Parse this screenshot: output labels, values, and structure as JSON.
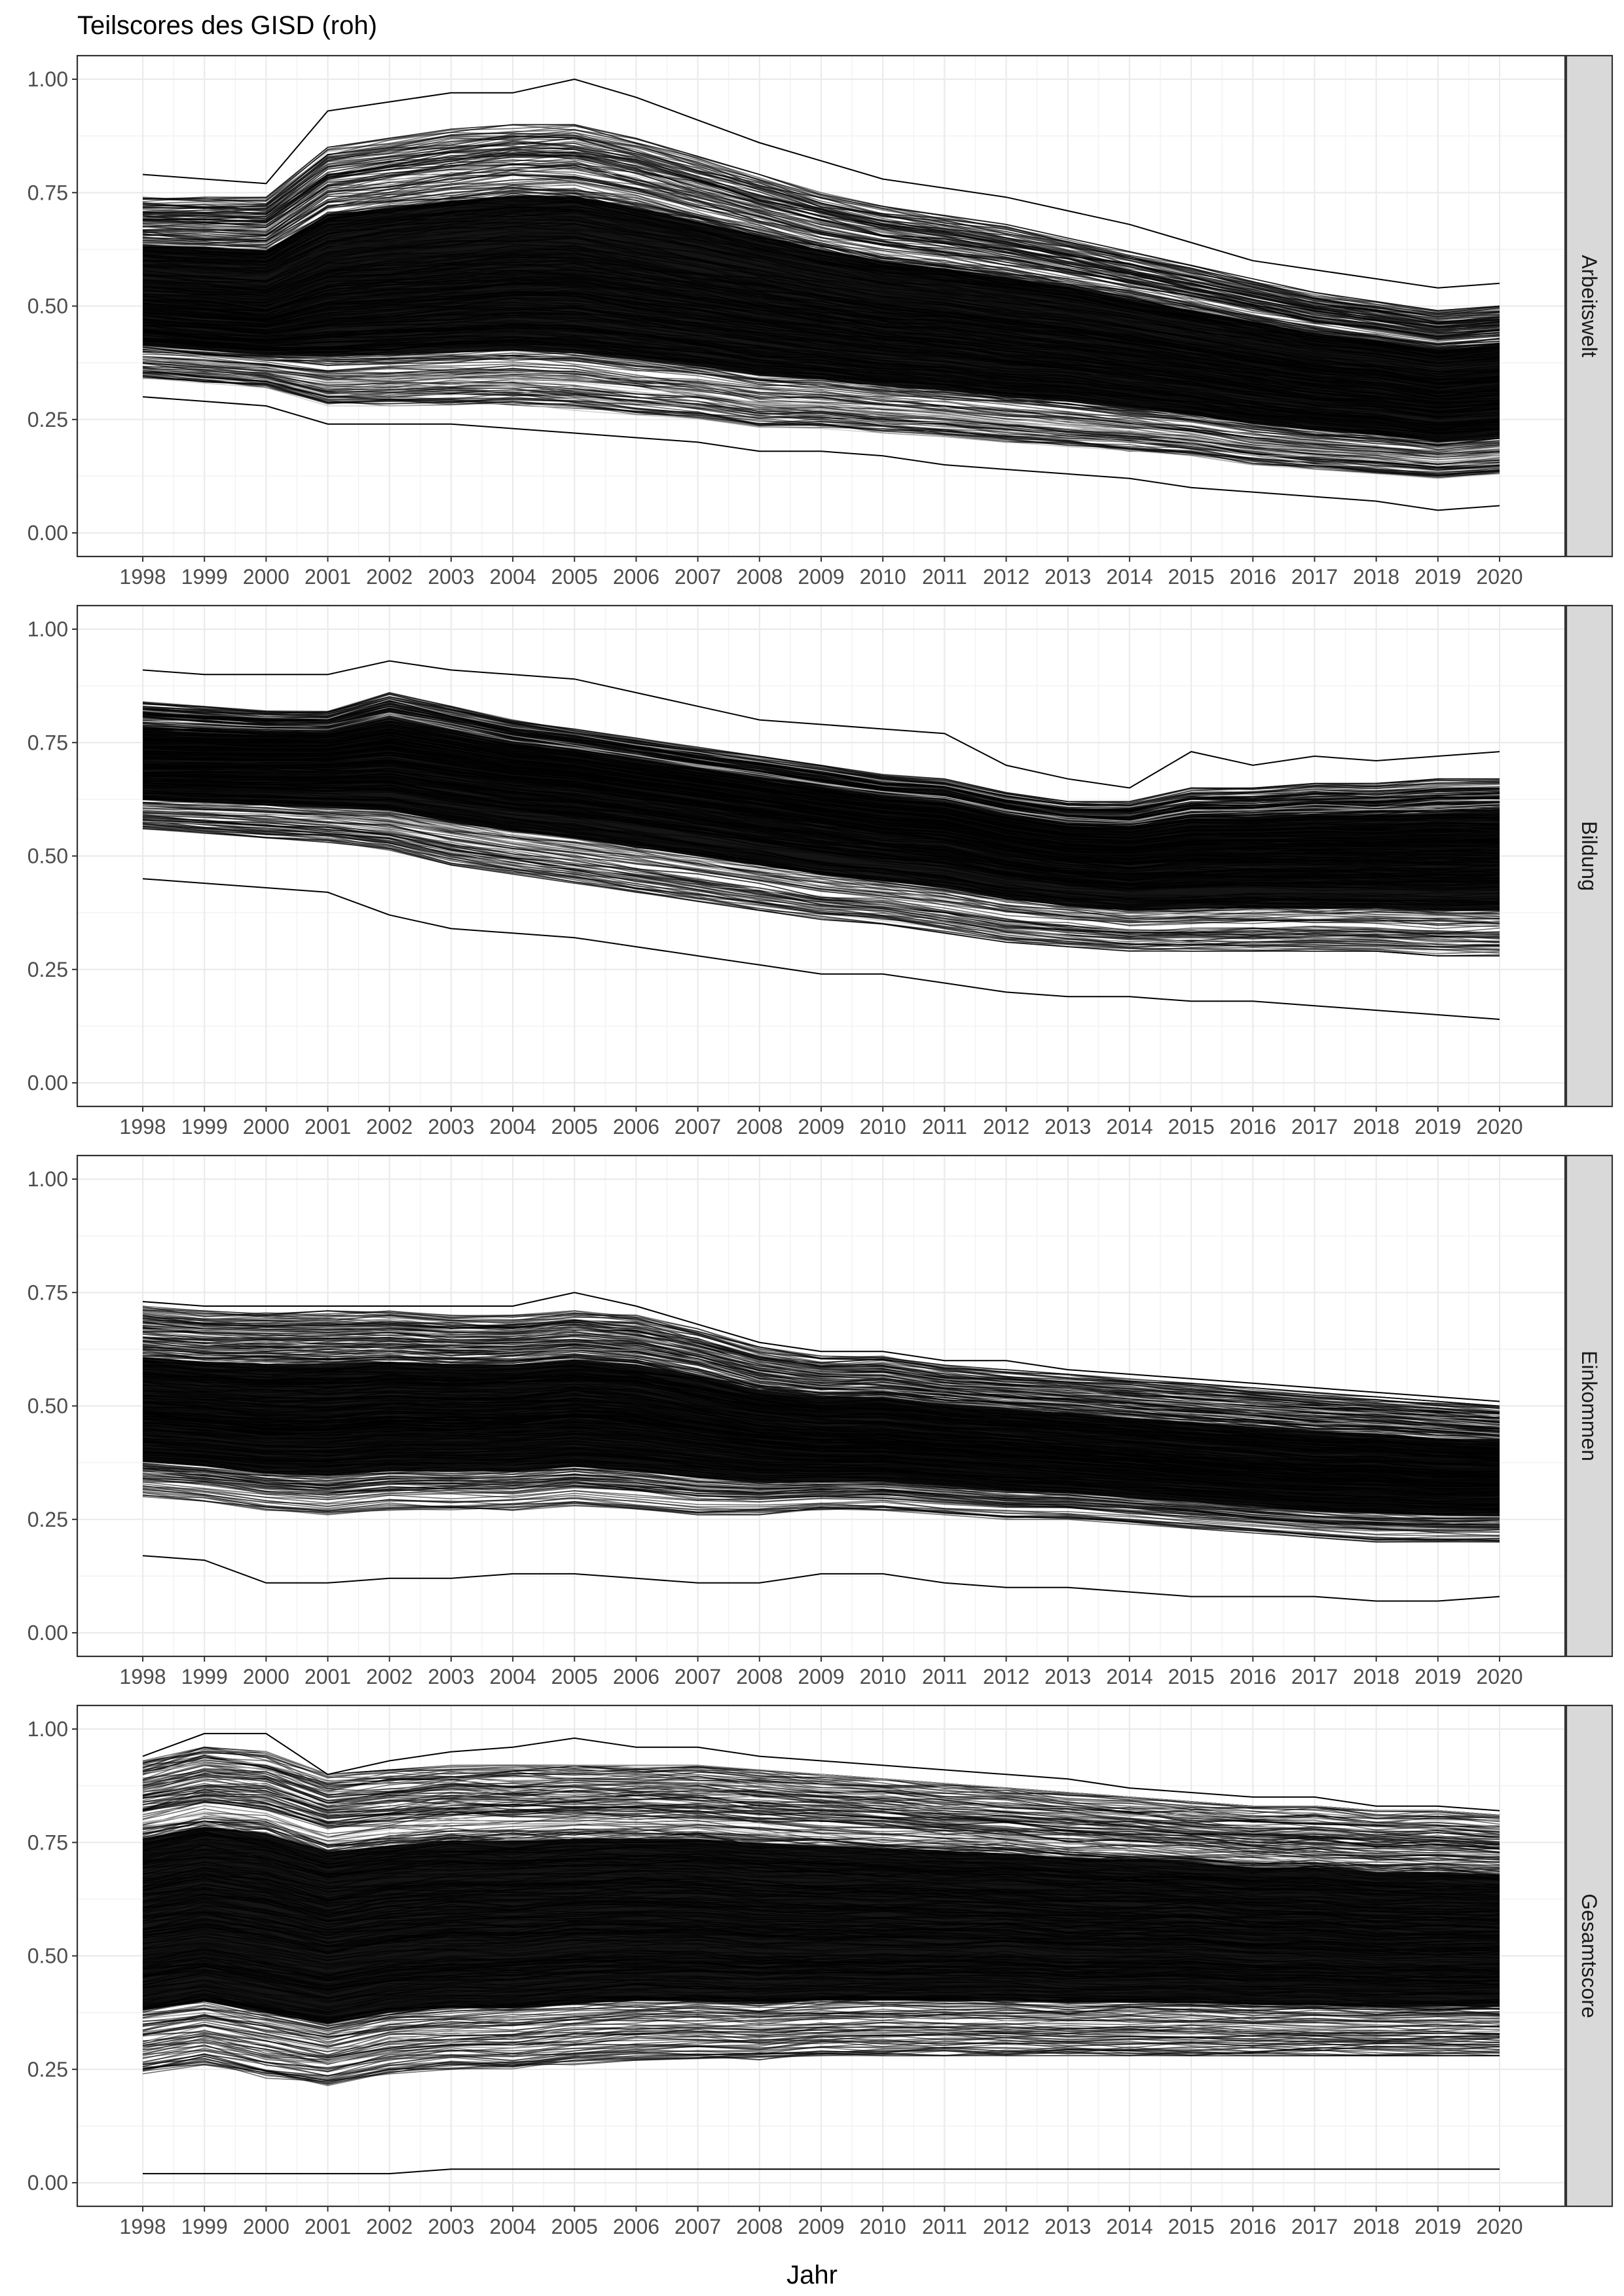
{
  "chart_data": {
    "type": "line",
    "title": "Teilscores des GISD (roh)",
    "xlabel": "Jahr",
    "ylabel": "",
    "x": [
      1998,
      1999,
      2000,
      2001,
      2002,
      2003,
      2004,
      2005,
      2006,
      2007,
      2008,
      2009,
      2010,
      2011,
      2012,
      2013,
      2014,
      2015,
      2016,
      2017,
      2018,
      2019,
      2020
    ],
    "x_tick_labels": [
      "1998",
      "1999",
      "2000",
      "2001",
      "2002",
      "2003",
      "2004",
      "2005",
      "2006",
      "2007",
      "2008",
      "2009",
      "2010",
      "2011",
      "2012",
      "2013",
      "2014",
      "2015",
      "2016",
      "2017",
      "2018",
      "2019",
      "2020"
    ],
    "ylim": [
      0,
      1
    ],
    "y_ticks": [
      0,
      0.25,
      0.5,
      0.75,
      1
    ],
    "y_tick_labels": [
      "0.00",
      "0.25",
      "0.50",
      "0.75",
      "1.00"
    ],
    "grid": true,
    "legend": "none",
    "line_color": "#000000",
    "light_line_color": "#bdbdbd",
    "strip_fill": "#d9d9d9",
    "facets": [
      {
        "name": "Arbeitswelt",
        "series_shown": 2,
        "series": [
          {
            "values": [
              0.79,
              0.78,
              0.77,
              0.93,
              0.95,
              0.97,
              0.97,
              1.0,
              0.96,
              0.91,
              0.86,
              0.82,
              0.78,
              0.76,
              0.74,
              0.71,
              0.68,
              0.64,
              0.6,
              0.58,
              0.56,
              0.54,
              0.55
            ]
          },
          {
            "values": [
              0.3,
              0.29,
              0.28,
              0.24,
              0.24,
              0.24,
              0.23,
              0.22,
              0.21,
              0.2,
              0.18,
              0.18,
              0.17,
              0.15,
              0.14,
              0.13,
              0.12,
              0.1,
              0.09,
              0.08,
              0.07,
              0.05,
              0.06
            ]
          }
        ],
        "band_upper": [
          0.74,
          0.74,
          0.74,
          0.85,
          0.87,
          0.89,
          0.9,
          0.9,
          0.87,
          0.83,
          0.79,
          0.75,
          0.72,
          0.7,
          0.68,
          0.65,
          0.62,
          0.59,
          0.56,
          0.53,
          0.51,
          0.49,
          0.5
        ],
        "band_lower": [
          0.34,
          0.33,
          0.32,
          0.28,
          0.28,
          0.28,
          0.28,
          0.27,
          0.26,
          0.25,
          0.23,
          0.23,
          0.22,
          0.21,
          0.2,
          0.19,
          0.18,
          0.17,
          0.15,
          0.14,
          0.13,
          0.12,
          0.13
        ],
        "median": [
          0.5,
          0.49,
          0.48,
          0.52,
          0.53,
          0.54,
          0.55,
          0.55,
          0.53,
          0.51,
          0.49,
          0.47,
          0.45,
          0.44,
          0.42,
          0.41,
          0.39,
          0.37,
          0.35,
          0.33,
          0.32,
          0.3,
          0.31
        ]
      },
      {
        "name": "Bildung",
        "series_shown": 2,
        "series": [
          {
            "values": [
              0.91,
              0.9,
              0.9,
              0.9,
              0.93,
              0.91,
              0.9,
              0.89,
              0.86,
              0.83,
              0.8,
              0.79,
              0.78,
              0.77,
              0.7,
              0.67,
              0.65,
              0.73,
              0.7,
              0.72,
              0.71,
              0.72,
              0.73
            ]
          },
          {
            "values": [
              0.45,
              0.44,
              0.43,
              0.42,
              0.37,
              0.34,
              0.33,
              0.32,
              0.3,
              0.28,
              0.26,
              0.24,
              0.24,
              0.22,
              0.2,
              0.19,
              0.19,
              0.18,
              0.18,
              0.17,
              0.16,
              0.15,
              0.14
            ]
          }
        ],
        "band_upper": [
          0.84,
          0.83,
          0.82,
          0.82,
          0.86,
          0.83,
          0.8,
          0.78,
          0.76,
          0.74,
          0.72,
          0.7,
          0.68,
          0.67,
          0.64,
          0.62,
          0.62,
          0.65,
          0.65,
          0.66,
          0.66,
          0.67,
          0.67
        ],
        "band_lower": [
          0.56,
          0.55,
          0.54,
          0.53,
          0.51,
          0.48,
          0.46,
          0.44,
          0.42,
          0.4,
          0.38,
          0.36,
          0.35,
          0.33,
          0.31,
          0.3,
          0.29,
          0.29,
          0.29,
          0.29,
          0.29,
          0.28,
          0.28
        ],
        "median": [
          0.7,
          0.7,
          0.7,
          0.7,
          0.71,
          0.69,
          0.67,
          0.66,
          0.64,
          0.62,
          0.6,
          0.58,
          0.56,
          0.55,
          0.52,
          0.5,
          0.49,
          0.5,
          0.5,
          0.5,
          0.5,
          0.5,
          0.5
        ]
      },
      {
        "name": "Einkommen",
        "series_shown": 2,
        "series": [
          {
            "values": [
              0.73,
              0.72,
              0.72,
              0.72,
              0.72,
              0.72,
              0.72,
              0.75,
              0.72,
              0.68,
              0.64,
              0.62,
              0.62,
              0.6,
              0.6,
              0.58,
              0.57,
              0.56,
              0.55,
              0.54,
              0.53,
              0.52,
              0.51
            ]
          },
          {
            "values": [
              0.17,
              0.16,
              0.11,
              0.11,
              0.12,
              0.12,
              0.13,
              0.13,
              0.12,
              0.11,
              0.11,
              0.13,
              0.13,
              0.11,
              0.1,
              0.1,
              0.09,
              0.08,
              0.08,
              0.08,
              0.07,
              0.07,
              0.08
            ]
          }
        ],
        "band_upper": [
          0.72,
          0.71,
          0.71,
          0.71,
          0.71,
          0.7,
          0.7,
          0.71,
          0.7,
          0.67,
          0.63,
          0.61,
          0.61,
          0.59,
          0.58,
          0.57,
          0.56,
          0.55,
          0.54,
          0.53,
          0.52,
          0.51,
          0.5
        ],
        "band_lower": [
          0.3,
          0.29,
          0.27,
          0.26,
          0.27,
          0.27,
          0.27,
          0.28,
          0.27,
          0.26,
          0.26,
          0.27,
          0.27,
          0.26,
          0.25,
          0.25,
          0.24,
          0.23,
          0.22,
          0.21,
          0.2,
          0.2,
          0.2
        ],
        "median": [
          0.47,
          0.46,
          0.45,
          0.45,
          0.46,
          0.46,
          0.46,
          0.47,
          0.46,
          0.44,
          0.42,
          0.41,
          0.41,
          0.4,
          0.39,
          0.38,
          0.37,
          0.36,
          0.35,
          0.34,
          0.34,
          0.33,
          0.33
        ]
      },
      {
        "name": "Gesamtscore",
        "series_shown": 2,
        "series": [
          {
            "values": [
              0.94,
              0.99,
              0.99,
              0.9,
              0.93,
              0.95,
              0.96,
              0.98,
              0.96,
              0.96,
              0.94,
              0.93,
              0.92,
              0.91,
              0.9,
              0.89,
              0.87,
              0.86,
              0.85,
              0.85,
              0.83,
              0.83,
              0.82
            ]
          },
          {
            "values": [
              0.02,
              0.02,
              0.02,
              0.02,
              0.02,
              0.03,
              0.03,
              0.03,
              0.03,
              0.03,
              0.03,
              0.03,
              0.03,
              0.03,
              0.03,
              0.03,
              0.03,
              0.03,
              0.03,
              0.03,
              0.03,
              0.03,
              0.03
            ]
          }
        ],
        "band_upper": [
          0.93,
          0.96,
          0.95,
          0.9,
          0.91,
          0.92,
          0.92,
          0.92,
          0.92,
          0.92,
          0.91,
          0.9,
          0.89,
          0.88,
          0.87,
          0.86,
          0.85,
          0.84,
          0.83,
          0.83,
          0.82,
          0.82,
          0.81
        ],
        "band_lower": [
          0.24,
          0.26,
          0.23,
          0.21,
          0.24,
          0.25,
          0.25,
          0.26,
          0.27,
          0.27,
          0.27,
          0.28,
          0.28,
          0.28,
          0.28,
          0.28,
          0.28,
          0.28,
          0.28,
          0.28,
          0.28,
          0.28,
          0.28
        ],
        "median": [
          0.55,
          0.57,
          0.55,
          0.52,
          0.54,
          0.55,
          0.55,
          0.56,
          0.56,
          0.56,
          0.55,
          0.55,
          0.55,
          0.55,
          0.55,
          0.54,
          0.54,
          0.54,
          0.53,
          0.53,
          0.52,
          0.52,
          0.52
        ]
      }
    ]
  }
}
